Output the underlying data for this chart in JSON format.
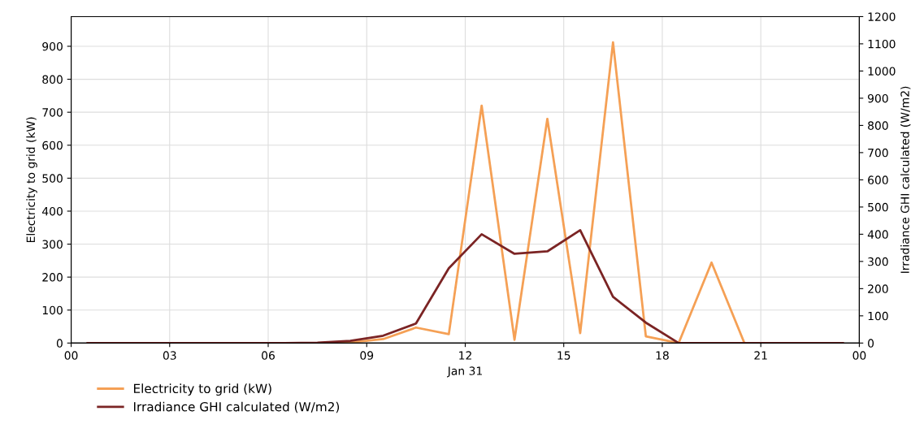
{
  "chart_data": {
    "type": "line",
    "x": [
      0.5,
      1.5,
      2.5,
      3.5,
      4.5,
      5.5,
      6.5,
      7.5,
      8.5,
      9.5,
      10.5,
      11.5,
      12.5,
      13.5,
      14.5,
      15.5,
      16.5,
      17.5,
      18.5,
      19.5,
      20.5,
      21.5,
      22.5,
      23.5
    ],
    "xlabel": "Jan 31",
    "ylabel": "Electricity to grid (kW)",
    "y2label": "Irradiance GHI calculated (W/m2)",
    "series": [
      {
        "name": "Electricity to grid (kW)",
        "color": "#f5a055",
        "values": [
          null,
          null,
          null,
          null,
          null,
          null,
          null,
          0,
          2,
          12,
          47,
          27,
          720,
          10,
          680,
          30,
          912,
          20,
          0,
          244,
          0,
          0,
          null,
          null
        ]
      },
      {
        "name": "Irradiance GHI calculated (W/m2)",
        "color": "#7b2424",
        "axis": "y2",
        "values": [
          0,
          0,
          0,
          0,
          0,
          0,
          0,
          1,
          8,
          27,
          72,
          275,
          400,
          328,
          337,
          415,
          170,
          75,
          0,
          0,
          0,
          0,
          0,
          0
        ]
      }
    ],
    "xlim": [
      0,
      24
    ],
    "xticks": [
      {
        "value": 0,
        "label": "00"
      },
      {
        "value": 3,
        "label": "03"
      },
      {
        "value": 6,
        "label": "06"
      },
      {
        "value": 9,
        "label": "09"
      },
      {
        "value": 12,
        "label": "12"
      },
      {
        "value": 15,
        "label": "15"
      },
      {
        "value": 18,
        "label": "18"
      },
      {
        "value": 21,
        "label": "21"
      },
      {
        "value": 24,
        "label": "00"
      }
    ],
    "ylim": [
      0,
      990
    ],
    "yticks": [
      0,
      100,
      200,
      300,
      400,
      500,
      600,
      700,
      800,
      900
    ],
    "y2lim": [
      0,
      1200
    ],
    "y2ticks": [
      0,
      100,
      200,
      300,
      400,
      500,
      600,
      700,
      800,
      900,
      1000,
      1100,
      1200
    ],
    "grid": true,
    "legend": "bottom left",
    "marker": "none",
    "line_style": "solid"
  }
}
